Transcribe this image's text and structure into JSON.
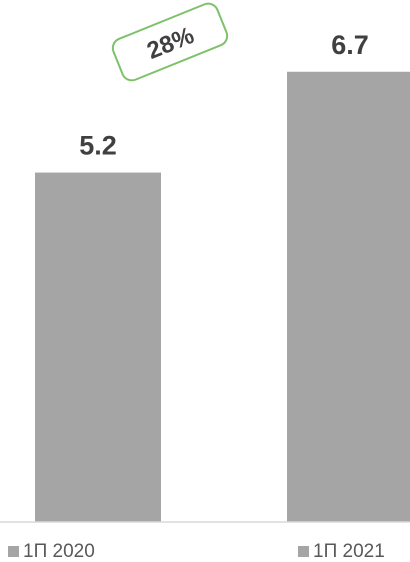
{
  "chart_data": {
    "type": "bar",
    "categories": [
      "1П 2020",
      "1П 2021"
    ],
    "values": [
      5.2,
      6.7
    ],
    "value_labels": [
      "5.2",
      "6.7"
    ],
    "ylim": [
      0,
      7.5
    ],
    "grid": false,
    "legend_position": "bottom",
    "growth_badge": {
      "label": "28%",
      "color": "#7ec16a"
    },
    "colors": {
      "bar": "#a5a5a5",
      "axis": "#d9d9d9",
      "value_text": "#404040",
      "legend_text": "#595959"
    }
  }
}
